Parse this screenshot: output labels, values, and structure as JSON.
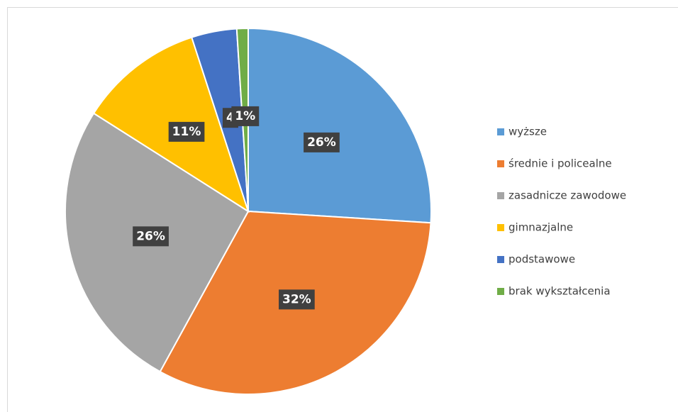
{
  "chart_data": {
    "type": "pie",
    "categories": [
      "wyższe",
      "średnie i policealne",
      "zasadnicze zawodowe",
      "gimnazjalne",
      "podstawowe",
      "brak wykształcenia"
    ],
    "values": [
      26,
      32,
      26,
      11,
      4,
      1
    ],
    "value_labels": [
      "26%",
      "32%",
      "26%",
      "11%",
      "4",
      "1%"
    ],
    "colors": [
      "#5b9bd5",
      "#ed7d31",
      "#a5a5a5",
      "#ffc000",
      "#4472c4",
      "#70ad47"
    ],
    "legend": "right"
  }
}
